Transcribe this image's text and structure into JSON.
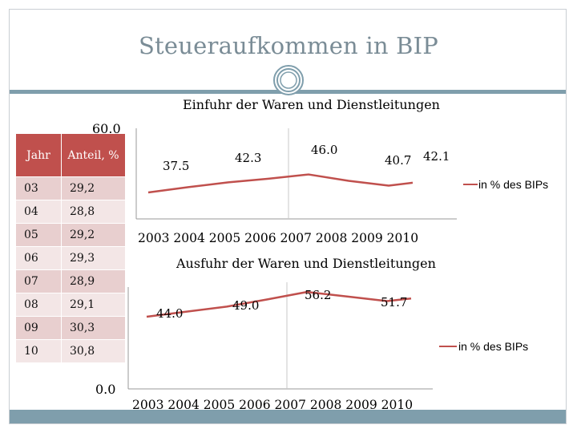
{
  "slide": {
    "title": "Steueraufkommen in BIP",
    "colors": {
      "accent": "#c0504d",
      "band": "#7f9eac",
      "title": "#7a8c96",
      "row_odd": "#e8cfcf",
      "row_even": "#f3e6e6"
    }
  },
  "table": {
    "headers": [
      "Jahr",
      "Anteil, %"
    ],
    "rows": [
      [
        "03",
        "29,2"
      ],
      [
        "04",
        "28,8"
      ],
      [
        "05",
        "29,2"
      ],
      [
        "06",
        "29,3"
      ],
      [
        "07",
        "28,9"
      ],
      [
        "08",
        "29,1"
      ],
      [
        "09",
        "30,3"
      ],
      [
        "10",
        "30,8"
      ]
    ]
  },
  "chart_data": [
    {
      "type": "line",
      "title": "Einfuhr der Waren und Dienstleitungen",
      "x": [
        "2003",
        "2004",
        "2005",
        "2006",
        "2007",
        "2008",
        "2009",
        "2010"
      ],
      "series": [
        {
          "name": "in % des BIPs",
          "values": [
            37.5,
            40,
            42.3,
            44,
            46.0,
            43,
            40.7,
            42.1
          ]
        }
      ],
      "data_labels": [
        "37.5",
        "42.3",
        "46.0",
        "40.7",
        "42.1"
      ],
      "y_tick_label": "60.0",
      "ylim": [
        0,
        60
      ],
      "legend_position": "right",
      "color": "#c0504d"
    },
    {
      "type": "line",
      "title": "Ausfuhr der Waren und Dienstleitungen",
      "x": [
        "2003",
        "2004",
        "2005",
        "2006",
        "2007",
        "2008",
        "2009",
        "2010"
      ],
      "series": [
        {
          "name": "in % des BIPs",
          "values": [
            44.0,
            46.5,
            49.0,
            52.5,
            56.2,
            54,
            51.7,
            53
          ]
        }
      ],
      "data_labels": [
        "44.0",
        "49.0",
        "56.2",
        "51.7"
      ],
      "y_tick_label": "0.0",
      "ylim": [
        0,
        60
      ],
      "legend_position": "right",
      "color": "#c0504d"
    }
  ]
}
